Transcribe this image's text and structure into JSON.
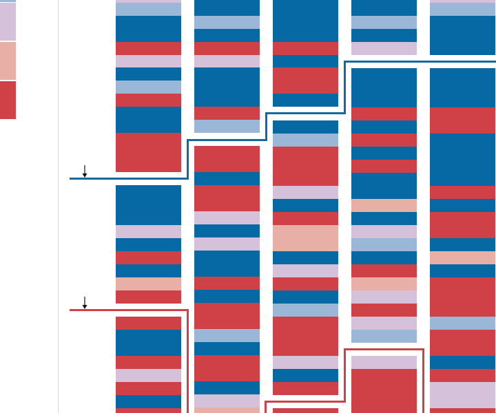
{
  "palette": {
    "strong_blue": "#0769a3",
    "light_blue": "#9ab7d7",
    "lavender": "#d5c2da",
    "pink": "#e8afa6",
    "strong_red": "#cf4146",
    "line_blue": "#1369a0",
    "line_red": "#cf4146",
    "divider": "#d9d9d9",
    "arrow": "#111111"
  },
  "chart_data": {
    "type": "stacked-blocks",
    "legend": {
      "placement": "left",
      "swatches": [
        "light_blue",
        "lavender",
        "pink",
        "strong_red"
      ]
    },
    "marker_icons": [
      "arrow-down-icon",
      "arrow-down-icon"
    ],
    "columns": [
      {
        "column": 1,
        "cells": [
          [
            "lavender",
            0,
            4
          ],
          [
            "light_blue",
            4,
            19
          ],
          [
            "strong_blue",
            23,
            38
          ],
          [
            "strong_red",
            61,
            19
          ],
          [
            "lavender",
            80,
            18
          ],
          [
            "strong_blue",
            98,
            19
          ],
          [
            "light_blue",
            117,
            19
          ],
          [
            "strong_red",
            136,
            19
          ],
          [
            "strong_blue",
            155,
            38
          ],
          [
            "strong_red",
            193,
            57
          ],
          [
            "strong_blue",
            269,
            58
          ],
          [
            "lavender",
            327,
            19
          ],
          [
            "strong_blue",
            346,
            19
          ],
          [
            "strong_red",
            365,
            19
          ],
          [
            "strong_blue",
            384,
            19
          ],
          [
            "pink",
            403,
            19
          ],
          [
            "strong_red",
            422,
            19
          ],
          [
            "strong_red",
            460,
            19
          ],
          [
            "strong_blue",
            479,
            38
          ],
          [
            "strong_red",
            517,
            19
          ],
          [
            "lavender",
            536,
            19
          ],
          [
            "strong_red",
            555,
            19
          ],
          [
            "strong_blue",
            574,
            19
          ],
          [
            "strong_red",
            593,
            7
          ]
        ]
      },
      {
        "column": 2,
        "cells": [
          [
            "strong_blue",
            0,
            23
          ],
          [
            "light_blue",
            23,
            19
          ],
          [
            "strong_blue",
            42,
            19
          ],
          [
            "strong_red",
            61,
            19
          ],
          [
            "lavender",
            80,
            18
          ],
          [
            "strong_blue",
            98,
            57
          ],
          [
            "strong_red",
            155,
            19
          ],
          [
            "light_blue",
            174,
            19
          ],
          [
            "strong_red",
            212,
            38
          ],
          [
            "strong_blue",
            250,
            19
          ],
          [
            "strong_red",
            269,
            38
          ],
          [
            "lavender",
            307,
            19
          ],
          [
            "strong_blue",
            326,
            19
          ],
          [
            "lavender",
            345,
            19
          ],
          [
            "strong_blue",
            364,
            38
          ],
          [
            "strong_red",
            402,
            19
          ],
          [
            "strong_blue",
            421,
            19
          ],
          [
            "strong_red",
            440,
            38
          ],
          [
            "light_blue",
            478,
            19
          ],
          [
            "strong_blue",
            497,
            19
          ],
          [
            "strong_red",
            516,
            38
          ],
          [
            "strong_blue",
            554,
            19
          ],
          [
            "lavender",
            573,
            19
          ],
          [
            "pink",
            592,
            8
          ]
        ]
      },
      {
        "column": 3,
        "cells": [
          [
            "strong_blue",
            0,
            61
          ],
          [
            "strong_red",
            61,
            19
          ],
          [
            "strong_blue",
            80,
            18
          ],
          [
            "strong_red",
            98,
            38
          ],
          [
            "strong_blue",
            136,
            19
          ],
          [
            "strong_blue",
            175,
            19
          ],
          [
            "light_blue",
            194,
            19
          ],
          [
            "strong_red",
            213,
            57
          ],
          [
            "lavender",
            270,
            19
          ],
          [
            "strong_blue",
            289,
            19
          ],
          [
            "strong_red",
            308,
            19
          ],
          [
            "pink",
            327,
            38
          ],
          [
            "strong_blue",
            365,
            19
          ],
          [
            "lavender",
            384,
            19
          ],
          [
            "strong_red",
            403,
            19
          ],
          [
            "strong_blue",
            422,
            19
          ],
          [
            "light_blue",
            441,
            19
          ],
          [
            "strong_red",
            460,
            57
          ],
          [
            "lavender",
            517,
            19
          ],
          [
            "strong_blue",
            536,
            19
          ],
          [
            "strong_red",
            555,
            19
          ],
          [
            "strong_red",
            593,
            7
          ]
        ]
      },
      {
        "column": 4,
        "cells": [
          [
            "strong_blue",
            0,
            23
          ],
          [
            "light_blue",
            23,
            19
          ],
          [
            "strong_blue",
            42,
            19
          ],
          [
            "lavender",
            61,
            19
          ],
          [
            "strong_blue",
            99,
            57
          ],
          [
            "strong_red",
            156,
            19
          ],
          [
            "strong_blue",
            175,
            19
          ],
          [
            "strong_red",
            194,
            19
          ],
          [
            "strong_blue",
            213,
            19
          ],
          [
            "strong_red",
            232,
            19
          ],
          [
            "strong_blue",
            251,
            38
          ],
          [
            "pink",
            289,
            19
          ],
          [
            "strong_blue",
            308,
            19
          ],
          [
            "lavender",
            327,
            19
          ],
          [
            "light_blue",
            346,
            19
          ],
          [
            "strong_blue",
            365,
            19
          ],
          [
            "strong_red",
            384,
            19
          ],
          [
            "pink",
            403,
            19
          ],
          [
            "lavender",
            422,
            19
          ],
          [
            "strong_red",
            441,
            19
          ],
          [
            "lavender",
            460,
            19
          ],
          [
            "light_blue",
            479,
            19
          ],
          [
            "lavender",
            517,
            19
          ],
          [
            "strong_red",
            536,
            64
          ]
        ]
      },
      {
        "column": 5,
        "cells": [
          [
            "lavender",
            0,
            4
          ],
          [
            "light_blue",
            4,
            19
          ],
          [
            "strong_blue",
            23,
            57
          ],
          [
            "strong_blue",
            99,
            57
          ],
          [
            "strong_red",
            156,
            38
          ],
          [
            "strong_blue",
            194,
            76
          ],
          [
            "strong_red",
            270,
            19
          ],
          [
            "strong_blue",
            289,
            19
          ],
          [
            "strong_red",
            308,
            38
          ],
          [
            "strong_blue",
            346,
            19
          ],
          [
            "pink",
            365,
            19
          ],
          [
            "strong_blue",
            384,
            19
          ],
          [
            "strong_red",
            403,
            57
          ],
          [
            "light_blue",
            460,
            19
          ],
          [
            "strong_red",
            479,
            38
          ],
          [
            "strong_blue",
            517,
            19
          ],
          [
            "strong_red",
            536,
            19
          ],
          [
            "lavender",
            555,
            38
          ],
          [
            "strong_red",
            593,
            7
          ]
        ]
      }
    ]
  }
}
